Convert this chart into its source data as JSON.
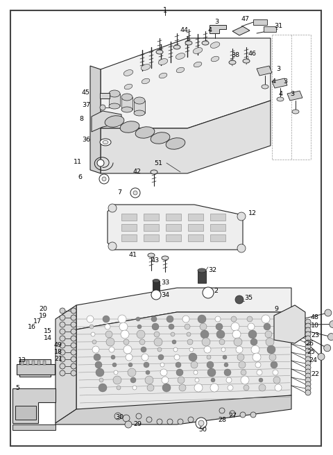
{
  "fig_width": 4.8,
  "fig_height": 6.56,
  "dpi": 100,
  "background_color": "#ffffff",
  "border_lw": 1.0,
  "line_color": "#222222",
  "gray_fill": "#e8e8e8",
  "dark_gray": "#555555",
  "mid_gray": "#aaaaaa"
}
